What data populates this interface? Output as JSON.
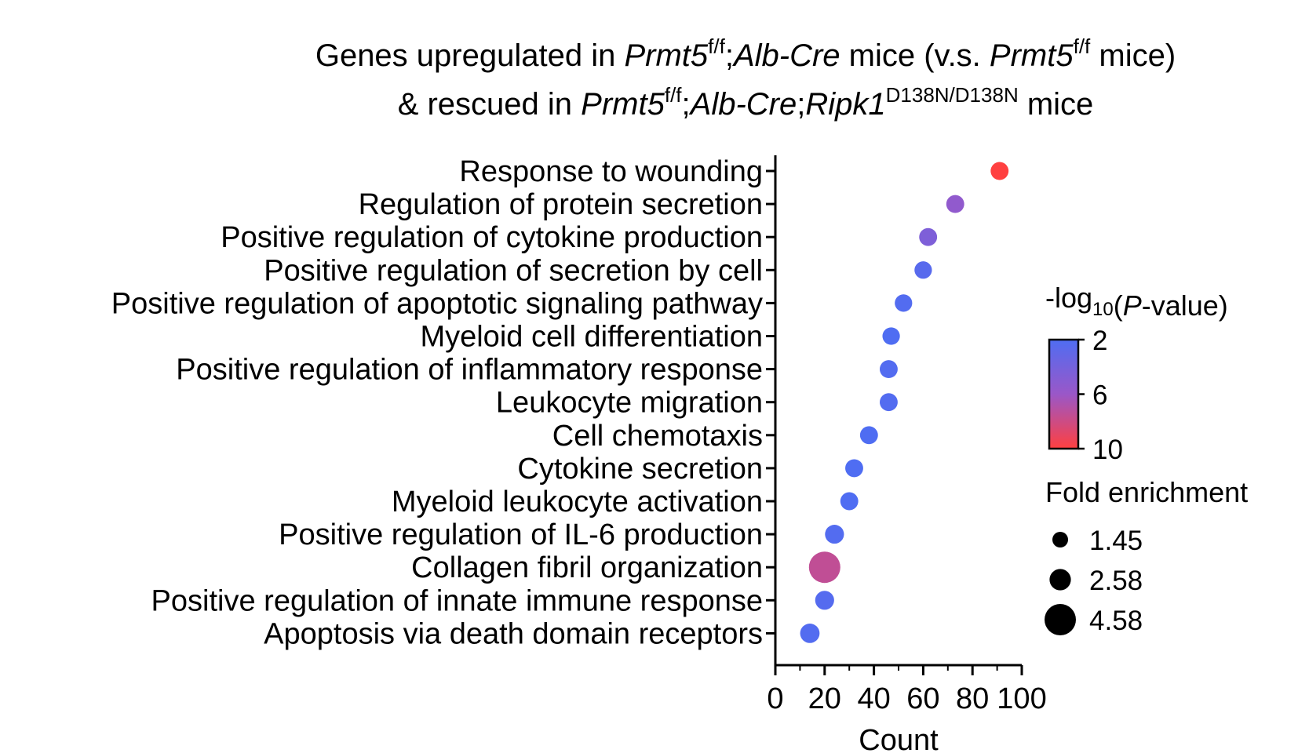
{
  "title": {
    "line1": [
      {
        "t": "Genes upregulated in ",
        "s": "n"
      },
      {
        "t": "Prmt5",
        "s": "i"
      },
      {
        "t": "f/f",
        "s": "sup"
      },
      {
        "t": ";",
        "s": "n"
      },
      {
        "t": "Alb-Cre",
        "s": "i"
      },
      {
        "t": " mice (v.s. ",
        "s": "n"
      },
      {
        "t": "Prmt5",
        "s": "i"
      },
      {
        "t": "f/f",
        "s": "sup"
      },
      {
        "t": " mice)",
        "s": "n"
      }
    ],
    "line2": [
      {
        "t": "& rescued in ",
        "s": "n"
      },
      {
        "t": "Prmt5",
        "s": "i"
      },
      {
        "t": "f/f",
        "s": "sup"
      },
      {
        "t": ";",
        "s": "n"
      },
      {
        "t": "Alb-Cre",
        "s": "i"
      },
      {
        "t": ";",
        "s": "n"
      },
      {
        "t": "Ripk1",
        "s": "i"
      },
      {
        "t": "D138N/D138N",
        "s": "sup"
      },
      {
        "t": " mice",
        "s": "n"
      }
    ]
  },
  "chart_data": {
    "type": "scatter",
    "categories": [
      "Response to wounding",
      "Regulation of protein secretion",
      "Positive regulation of cytokine production",
      "Positive regulation of secretion by cell",
      "Positive regulation of apoptotic signaling pathway",
      "Myeloid cell differentiation",
      "Positive regulation of inflammatory response",
      "Leukocyte migration",
      "Cell chemotaxis",
      "Cytokine secretion",
      "Myeloid leukocyte activation",
      "Positive regulation of IL-6 production",
      "Collagen fibril organization",
      "Positive regulation of innate immune response",
      "Apoptosis via death domain receptors"
    ],
    "count": [
      91,
      73,
      62,
      60,
      52,
      47,
      46,
      46,
      38,
      32,
      30,
      24,
      20,
      20,
      14
    ],
    "neg_log10_p": [
      10,
      5.5,
      4.5,
      2.5,
      2.2,
      2.0,
      2.2,
      2.2,
      2.0,
      2.0,
      2.0,
      2.2,
      7.5,
      2.3,
      2.2
    ],
    "fold_enrichment": [
      1.9,
      1.9,
      1.9,
      1.8,
      1.8,
      1.8,
      1.9,
      1.9,
      1.9,
      1.9,
      1.9,
      2.1,
      4.58,
      2.1,
      2.2
    ],
    "xlabel": "Count",
    "xlim": [
      0,
      100
    ],
    "xticks": [
      "0",
      "20",
      "40",
      "60",
      "80",
      "100"
    ],
    "colorbar": {
      "title": "-log10(P-value)",
      "title_parts": [
        {
          "t": "-log",
          "s": "n"
        },
        {
          "t": "10",
          "s": "sub"
        },
        {
          "t": "(",
          "s": "n"
        },
        {
          "t": "P",
          "s": "i"
        },
        {
          "t": "-value)",
          "s": "n"
        }
      ],
      "min": 2,
      "max": 10,
      "ticks": [
        "2",
        "6",
        "10"
      ],
      "color_low": "#4f6df2",
      "color_mid": "#9a57c8",
      "color_high": "#ff4040"
    },
    "size_legend": {
      "title": "Fold enrichment",
      "labels": [
        "1.45",
        "2.58",
        "4.58"
      ],
      "values": [
        1.45,
        2.58,
        4.58
      ]
    }
  }
}
